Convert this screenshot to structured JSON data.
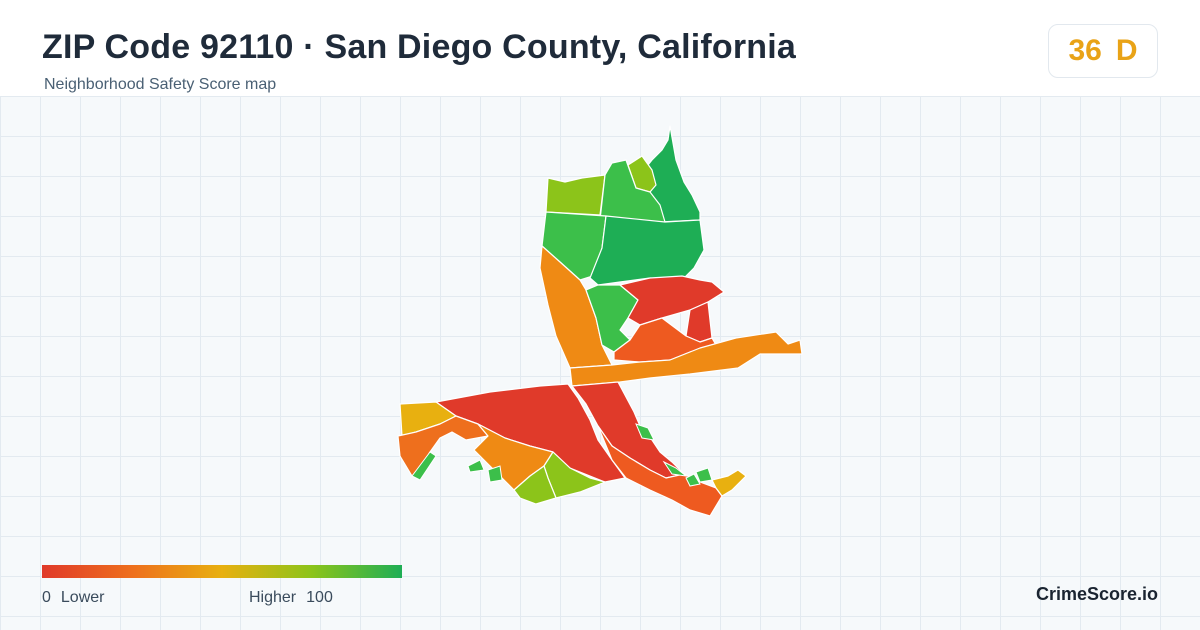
{
  "header": {
    "title": "ZIP Code 92110 · San Diego County, California",
    "subtitle": "Neighborhood Safety Score map"
  },
  "score": {
    "value": "36",
    "grade": "D",
    "color": "#e9a317"
  },
  "legend": {
    "min_value": "0",
    "min_label": "Lower",
    "max_label": "Higher",
    "max_value": "100",
    "colors": [
      "#e03a2a",
      "#ee6f1d",
      "#e8b010",
      "#8cc41a",
      "#1eae55"
    ]
  },
  "brand": "CrimeScore.io",
  "map_regions": [
    {
      "name": "north-tip",
      "score": 95,
      "color": "#1eae55"
    },
    {
      "name": "north-left",
      "score": 80,
      "color": "#8cc41a"
    },
    {
      "name": "north-mid-small",
      "score": 78,
      "color": "#8cc41a"
    },
    {
      "name": "north-mid",
      "score": 88,
      "color": "#3cbf4a"
    },
    {
      "name": "north-west",
      "score": 88,
      "color": "#3cbf4a"
    },
    {
      "name": "north-center",
      "score": 95,
      "color": "#1eae55"
    },
    {
      "name": "west-strip",
      "score": 45,
      "color": "#ef8a14"
    },
    {
      "name": "center-green",
      "score": 88,
      "color": "#3cbf4a"
    },
    {
      "name": "center-red",
      "score": 8,
      "color": "#e03a2a"
    },
    {
      "name": "east-red",
      "score": 8,
      "color": "#e03a2a"
    },
    {
      "name": "center-orange",
      "score": 25,
      "color": "#ee5a20"
    },
    {
      "name": "east-arm",
      "score": 40,
      "color": "#ef8a14"
    },
    {
      "name": "south-big-red",
      "score": 10,
      "color": "#e03a2a"
    },
    {
      "name": "south-red-east",
      "score": 10,
      "color": "#e03a2a"
    },
    {
      "name": "south-strip",
      "score": 25,
      "color": "#ee5a20"
    },
    {
      "name": "southwest-yellow",
      "score": 55,
      "color": "#e8b010"
    },
    {
      "name": "southwest-orange",
      "score": 30,
      "color": "#ee6f1d"
    },
    {
      "name": "south-orange",
      "score": 45,
      "color": "#ef8a14"
    },
    {
      "name": "south-lime",
      "score": 75,
      "color": "#8cc41a"
    },
    {
      "name": "south-lime-small",
      "score": 75,
      "color": "#8cc41a"
    },
    {
      "name": "east-tip-yellow",
      "score": 55,
      "color": "#e8b010"
    }
  ]
}
